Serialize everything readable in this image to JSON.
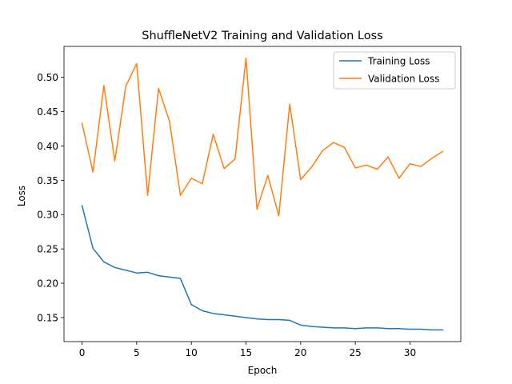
{
  "chart_data": {
    "type": "line",
    "title": "ShuffleNetV2 Training and Validation Loss",
    "xlabel": "Epoch",
    "ylabel": "Loss",
    "xlim": [
      -1.65,
      34.65
    ],
    "ylim": [
      0.115,
      0.545
    ],
    "xticks": [
      0,
      5,
      10,
      15,
      20,
      25,
      30
    ],
    "yticks": [
      0.15,
      0.2,
      0.25,
      0.3,
      0.35,
      0.4,
      0.45,
      0.5
    ],
    "ytick_labels": [
      "0.15",
      "0.20",
      "0.25",
      "0.30",
      "0.35",
      "0.40",
      "0.45",
      "0.50"
    ],
    "grid": false,
    "legend_position": "top-right",
    "x": [
      0,
      1,
      2,
      3,
      4,
      5,
      6,
      7,
      8,
      9,
      10,
      11,
      12,
      13,
      14,
      15,
      16,
      17,
      18,
      19,
      20,
      21,
      22,
      23,
      24,
      25,
      26,
      27,
      28,
      29,
      30,
      31,
      32,
      33
    ],
    "series": [
      {
        "name": "Training Loss",
        "color": "#1f77b4",
        "values": [
          0.313,
          0.251,
          0.231,
          0.223,
          0.219,
          0.215,
          0.216,
          0.211,
          0.209,
          0.207,
          0.169,
          0.16,
          0.156,
          0.154,
          0.152,
          0.15,
          0.148,
          0.147,
          0.147,
          0.146,
          0.139,
          0.137,
          0.136,
          0.135,
          0.135,
          0.134,
          0.135,
          0.135,
          0.134,
          0.134,
          0.133,
          0.133,
          0.132,
          0.132
        ]
      },
      {
        "name": "Validation Loss",
        "color": "#ff7f0e",
        "values": [
          0.433,
          0.362,
          0.488,
          0.378,
          0.487,
          0.52,
          0.328,
          0.484,
          0.436,
          0.328,
          0.353,
          0.345,
          0.417,
          0.367,
          0.381,
          0.528,
          0.308,
          0.357,
          0.298,
          0.461,
          0.351,
          0.369,
          0.393,
          0.405,
          0.398,
          0.368,
          0.372,
          0.366,
          0.384,
          0.353,
          0.374,
          0.37,
          0.382,
          0.392
        ]
      }
    ]
  }
}
